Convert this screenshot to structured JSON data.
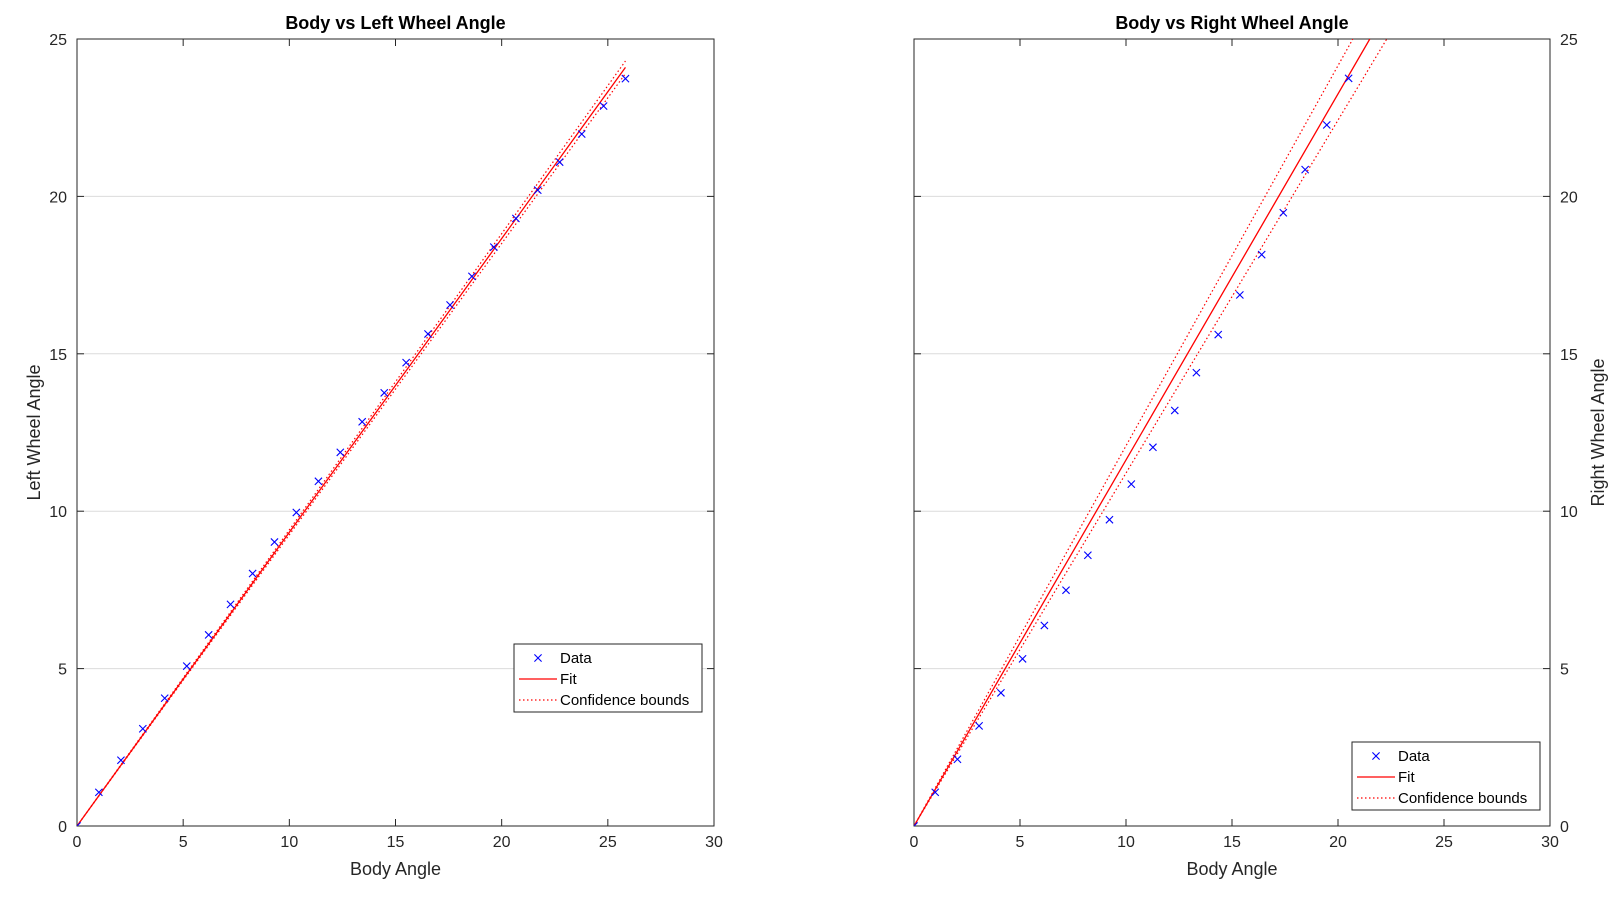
{
  "colors": {
    "data": "#0000ff",
    "fit": "#ff0000",
    "bounds": "#ff0000",
    "axis": "#262626",
    "grid": "#dcdcdc"
  },
  "chart_data": [
    {
      "type": "scatter",
      "title": "Body vs Left Wheel Angle",
      "xlabel": "Body Angle",
      "ylabel": "Left Wheel Angle",
      "ylabel_side": "left",
      "xlim": [
        0,
        30
      ],
      "ylim": [
        0,
        25
      ],
      "xticks": [
        0,
        5,
        10,
        15,
        20,
        25,
        30
      ],
      "yticks": [
        0,
        5,
        10,
        15,
        20,
        25
      ],
      "grid": "y",
      "legend_placement": "lower-right",
      "legend": [
        "Data",
        "Fit",
        "Confidence bounds"
      ],
      "series": [
        {
          "name": "Data",
          "marker": "x",
          "x": [
            0,
            1.03,
            2.07,
            3.1,
            4.13,
            5.17,
            6.2,
            7.23,
            8.27,
            9.3,
            10.33,
            11.37,
            12.4,
            13.43,
            14.47,
            15.5,
            16.53,
            17.57,
            18.6,
            19.63,
            20.67,
            21.7,
            22.73,
            23.77,
            24.8,
            25.83
          ],
          "y": [
            0,
            1.07,
            2.09,
            3.09,
            4.06,
            5.08,
            6.07,
            7.04,
            8.02,
            9.02,
            9.96,
            10.95,
            11.87,
            12.84,
            13.76,
            14.72,
            15.63,
            16.55,
            17.46,
            18.39,
            19.3,
            20.2,
            21.09,
            21.98,
            22.87,
            23.74
          ]
        },
        {
          "name": "Fit",
          "style": "solid",
          "x": [
            0,
            25.83
          ],
          "y": [
            0,
            24.1
          ]
        },
        {
          "name": "Confidence bounds",
          "style": "dotted",
          "x": [
            0,
            25.83
          ],
          "y_upper": [
            0,
            24.3
          ],
          "y_lower": [
            0,
            23.9
          ]
        }
      ]
    },
    {
      "type": "scatter",
      "title": "Body vs Right Wheel Angle",
      "xlabel": "Body Angle",
      "ylabel": "Right Wheel Angle",
      "ylabel_side": "right",
      "xlim": [
        0,
        30
      ],
      "ylim": [
        0,
        25
      ],
      "xticks": [
        0,
        5,
        10,
        15,
        20,
        25,
        30
      ],
      "yticks": [
        0,
        5,
        10,
        15,
        20,
        25
      ],
      "grid": "y",
      "legend_placement": "lower-right",
      "legend": [
        "Data",
        "Fit",
        "Confidence bounds"
      ],
      "series": [
        {
          "name": "Data",
          "marker": "x",
          "x": [
            0,
            1.0,
            2.05,
            3.07,
            4.1,
            5.12,
            6.15,
            7.17,
            8.2,
            9.22,
            10.25,
            11.27,
            12.3,
            13.32,
            14.35,
            15.37,
            16.4,
            17.42,
            18.45,
            19.47,
            20.5
          ],
          "y": [
            0,
            1.07,
            2.12,
            3.18,
            4.23,
            5.31,
            6.37,
            7.49,
            8.6,
            9.73,
            10.86,
            12.03,
            13.2,
            14.4,
            15.61,
            16.87,
            18.15,
            19.48,
            20.85,
            22.27,
            23.75
          ]
        },
        {
          "name": "Fit",
          "style": "solid",
          "x": [
            0,
            21.5
          ],
          "y": [
            0,
            25
          ]
        },
        {
          "name": "Confidence bounds",
          "style": "dotted",
          "x_upper": [
            0,
            20.7
          ],
          "y_upper": [
            0,
            25
          ],
          "x_lower": [
            0,
            22.3
          ],
          "y_lower": [
            0,
            25
          ]
        }
      ]
    }
  ]
}
